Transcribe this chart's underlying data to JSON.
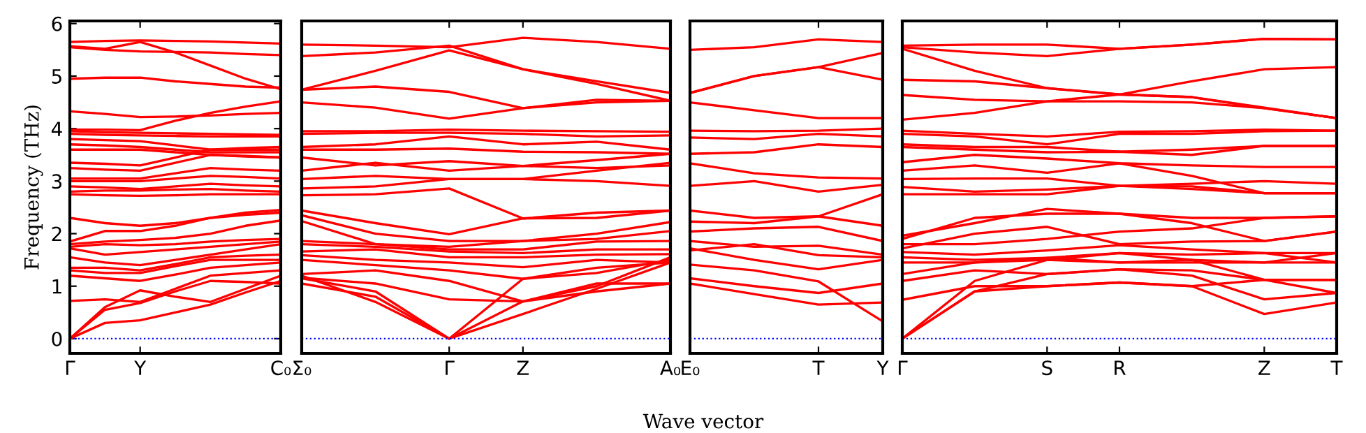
{
  "chart_data": [
    {
      "type": "line",
      "ylabel": "Frequency (THz)",
      "categories": [
        "Γ",
        null,
        "Y",
        null,
        null,
        null,
        "C₀"
      ],
      "ylim": [
        -0.28,
        6.05
      ],
      "yticks": [
        0,
        1,
        2,
        3,
        4,
        5,
        6
      ],
      "grid": false,
      "ref_lines": [
        {
          "axis": "y",
          "value": 0,
          "color": "#0000ff",
          "line_style": "dotted"
        }
      ],
      "series": [
        {
          "color": "#ff0000",
          "values": [
            5.65,
            5.67,
            5.68,
            5.67,
            5.66,
            5.64,
            5.62
          ]
        },
        {
          "color": "#ff0000",
          "values": [
            5.57,
            5.52,
            5.65,
            5.45,
            5.2,
            4.95,
            4.75
          ]
        },
        {
          "color": "#ff0000",
          "values": [
            5.55,
            5.5,
            5.47,
            5.46,
            5.45,
            5.42,
            5.4
          ]
        },
        {
          "color": "#ff0000",
          "values": [
            4.95,
            4.97,
            4.97,
            4.9,
            4.85,
            4.8,
            4.78
          ]
        },
        {
          "color": "#ff0000",
          "values": [
            4.33,
            4.28,
            4.22,
            4.23,
            4.25,
            4.28,
            4.3
          ]
        },
        {
          "color": "#ff0000",
          "values": [
            3.98,
            3.98,
            3.97,
            4.15,
            4.3,
            4.42,
            4.52
          ]
        },
        {
          "color": "#ff0000",
          "values": [
            3.95,
            3.93,
            3.92,
            3.91,
            3.9,
            3.89,
            3.88
          ]
        },
        {
          "color": "#ff0000",
          "values": [
            3.9,
            3.88,
            3.87,
            3.86,
            3.85,
            3.85,
            3.85
          ]
        },
        {
          "color": "#ff0000",
          "values": [
            3.8,
            3.78,
            3.76,
            3.68,
            3.6,
            3.6,
            3.6
          ]
        },
        {
          "color": "#ff0000",
          "values": [
            3.7,
            3.68,
            3.65,
            3.6,
            3.55,
            3.55,
            3.55
          ]
        },
        {
          "color": "#ff0000",
          "values": [
            3.6,
            3.6,
            3.6,
            3.55,
            3.5,
            3.47,
            3.45
          ]
        },
        {
          "color": "#ff0000",
          "values": [
            3.35,
            3.33,
            3.3,
            3.45,
            3.6,
            3.63,
            3.65
          ]
        },
        {
          "color": "#ff0000",
          "values": [
            3.25,
            3.22,
            3.2,
            3.35,
            3.5,
            3.48,
            3.45
          ]
        },
        {
          "color": "#ff0000",
          "values": [
            3.05,
            3.05,
            3.05,
            3.15,
            3.25,
            3.22,
            3.2
          ]
        },
        {
          "color": "#ff0000",
          "values": [
            3.0,
            3.0,
            3.0,
            3.05,
            3.1,
            3.08,
            3.05
          ]
        },
        {
          "color": "#ff0000",
          "values": [
            2.9,
            2.88,
            2.85,
            2.9,
            2.95,
            2.92,
            2.9
          ]
        },
        {
          "color": "#ff0000",
          "values": [
            2.8,
            2.82,
            2.82,
            2.84,
            2.85,
            2.82,
            2.8
          ]
        },
        {
          "color": "#ff0000",
          "values": [
            2.75,
            2.73,
            2.72,
            2.73,
            2.75,
            2.75,
            2.75
          ]
        },
        {
          "color": "#ff0000",
          "values": [
            2.3,
            2.2,
            2.15,
            2.2,
            2.3,
            2.4,
            2.45
          ]
        },
        {
          "color": "#ff0000",
          "values": [
            1.85,
            2.05,
            2.05,
            2.15,
            2.3,
            2.36,
            2.4
          ]
        },
        {
          "color": "#ff0000",
          "values": [
            1.8,
            1.85,
            1.88,
            1.92,
            2.0,
            2.15,
            2.25
          ]
        },
        {
          "color": "#ff0000",
          "values": [
            1.75,
            1.8,
            1.78,
            1.8,
            1.85,
            1.88,
            1.9
          ]
        },
        {
          "color": "#ff0000",
          "values": [
            1.72,
            1.6,
            1.65,
            1.7,
            1.75,
            1.8,
            1.85
          ]
        },
        {
          "color": "#ff0000",
          "values": [
            1.55,
            1.45,
            1.4,
            1.5,
            1.6,
            1.7,
            1.8
          ]
        },
        {
          "color": "#ff0000",
          "values": [
            1.35,
            1.35,
            1.3,
            1.42,
            1.55,
            1.58,
            1.6
          ]
        },
        {
          "color": "#ff0000",
          "values": [
            1.3,
            1.25,
            1.25,
            1.38,
            1.5,
            1.5,
            1.5
          ]
        },
        {
          "color": "#ff0000",
          "values": [
            1.2,
            1.15,
            1.1,
            1.22,
            1.35,
            1.4,
            1.45
          ]
        },
        {
          "color": "#ff0000",
          "values": [
            0.72,
            0.75,
            0.7,
            0.95,
            1.2,
            1.25,
            1.3
          ]
        },
        {
          "color": "#ff0000",
          "values": [
            0,
            0.6,
            0.92,
            0.8,
            0.7,
            0.95,
            1.2
          ]
        },
        {
          "color": "#ff0000",
          "values": [
            0,
            0.55,
            0.68,
            0.9,
            1.1,
            1.08,
            1.05
          ]
        },
        {
          "color": "#ff0000",
          "values": [
            0,
            0.3,
            0.35,
            0.5,
            0.65,
            0.88,
            1.1
          ]
        }
      ]
    },
    {
      "type": "line",
      "xlabel": "Wave vector",
      "tick_labels": "x",
      "categories": [
        "Σ₀",
        null,
        "Γ",
        "Z",
        null,
        "A₀"
      ],
      "ylim": [
        -0.28,
        6.05
      ],
      "grid": false,
      "ref_lines": [
        {
          "axis": "y",
          "value": 0,
          "color": "#0000ff",
          "line_style": "dotted"
        }
      ],
      "series": [
        {
          "color": "#ff0000",
          "values": [
            5.6,
            5.58,
            5.55,
            5.73,
            5.65,
            5.52
          ]
        },
        {
          "color": "#ff0000",
          "values": [
            5.38,
            5.45,
            5.58,
            5.13,
            4.9,
            4.68
          ]
        },
        {
          "color": "#ff0000",
          "values": [
            4.74,
            5.1,
            5.49,
            5.13,
            4.85,
            4.53
          ]
        },
        {
          "color": "#ff0000",
          "values": [
            4.74,
            4.8,
            4.7,
            4.39,
            4.5,
            4.53
          ]
        },
        {
          "color": "#ff0000",
          "values": [
            4.5,
            4.4,
            4.19,
            4.39,
            4.55,
            4.53
          ]
        },
        {
          "color": "#ff0000",
          "values": [
            3.95,
            3.95,
            3.98,
            3.96,
            3.95,
            3.94
          ]
        },
        {
          "color": "#ff0000",
          "values": [
            3.9,
            3.92,
            3.92,
            3.9,
            3.85,
            3.87
          ]
        },
        {
          "color": "#ff0000",
          "values": [
            3.65,
            3.7,
            3.85,
            3.7,
            3.75,
            3.6
          ]
        },
        {
          "color": "#ff0000",
          "values": [
            3.6,
            3.6,
            3.62,
            3.56,
            3.55,
            3.52
          ]
        },
        {
          "color": "#ff0000",
          "values": [
            3.45,
            3.3,
            3.38,
            3.29,
            3.4,
            3.52
          ]
        },
        {
          "color": "#ff0000",
          "values": [
            3.2,
            3.35,
            3.2,
            3.29,
            3.25,
            3.3
          ]
        },
        {
          "color": "#ff0000",
          "values": [
            3.04,
            3.1,
            3.04,
            3.04,
            3.2,
            3.35
          ]
        },
        {
          "color": "#ff0000",
          "values": [
            2.86,
            2.9,
            3.04,
            3.04,
            3.0,
            2.91
          ]
        },
        {
          "color": "#ff0000",
          "values": [
            2.73,
            2.75,
            2.86,
            2.29,
            2.4,
            2.44
          ]
        },
        {
          "color": "#ff0000",
          "values": [
            2.44,
            2.2,
            1.99,
            2.29,
            2.3,
            2.44
          ]
        },
        {
          "color": "#ff0000",
          "values": [
            2.35,
            2.0,
            1.86,
            1.86,
            2.0,
            2.22
          ]
        },
        {
          "color": "#ff0000",
          "values": [
            2.24,
            1.8,
            1.75,
            1.86,
            1.9,
            2.05
          ]
        },
        {
          "color": "#ff0000",
          "values": [
            1.86,
            1.8,
            1.7,
            1.7,
            1.85,
            1.86
          ]
        },
        {
          "color": "#ff0000",
          "values": [
            1.8,
            1.75,
            1.66,
            1.63,
            1.7,
            1.7
          ]
        },
        {
          "color": "#ff0000",
          "values": [
            1.66,
            1.7,
            1.55,
            1.55,
            1.6,
            1.61
          ]
        },
        {
          "color": "#ff0000",
          "values": [
            1.59,
            1.5,
            1.45,
            1.36,
            1.5,
            1.45
          ]
        },
        {
          "color": "#ff0000",
          "values": [
            1.5,
            1.4,
            1.3,
            1.14,
            1.35,
            1.45
          ]
        },
        {
          "color": "#ff0000",
          "values": [
            1.23,
            1.3,
            1.1,
            0.71,
            1.05,
            1.05
          ]
        },
        {
          "color": "#ff0000",
          "values": [
            1.16,
            1.05,
            0.75,
            0.71,
            0.9,
            1.05
          ]
        },
        {
          "color": "#ff0000",
          "values": [
            1.05,
            0.8,
            0,
            0.47,
            0.95,
            1.45
          ]
        },
        {
          "color": "#ff0000",
          "values": [
            1.2,
            0.7,
            0,
            0.71,
            1.0,
            1.55
          ]
        },
        {
          "color": "#ff0000",
          "values": [
            1.15,
            0.9,
            0,
            1.14,
            1.25,
            1.5
          ]
        }
      ]
    },
    {
      "type": "line",
      "tick_labels": "x",
      "categories": [
        "E₀",
        null,
        "T",
        "Y"
      ],
      "ylim": [
        -0.28,
        6.05
      ],
      "grid": false,
      "ref_lines": [
        {
          "axis": "y",
          "value": 0,
          "color": "#0000ff",
          "line_style": "dotted"
        }
      ],
      "series": [
        {
          "color": "#ff0000",
          "values": [
            5.5,
            5.55,
            5.7,
            5.65
          ]
        },
        {
          "color": "#ff0000",
          "values": [
            4.68,
            5.0,
            5.17,
            5.44
          ]
        },
        {
          "color": "#ff0000",
          "values": [
            4.68,
            5.0,
            5.17,
            4.93
          ]
        },
        {
          "color": "#ff0000",
          "values": [
            4.5,
            4.35,
            4.2,
            4.2
          ]
        },
        {
          "color": "#ff0000",
          "values": [
            3.96,
            3.95,
            3.96,
            4.0
          ]
        },
        {
          "color": "#ff0000",
          "values": [
            3.83,
            3.8,
            3.9,
            3.85
          ]
        },
        {
          "color": "#ff0000",
          "values": [
            3.52,
            3.55,
            3.7,
            3.65
          ]
        },
        {
          "color": "#ff0000",
          "values": [
            3.34,
            3.15,
            3.07,
            3.05
          ]
        },
        {
          "color": "#ff0000",
          "values": [
            2.91,
            3.0,
            2.8,
            2.93
          ]
        },
        {
          "color": "#ff0000",
          "values": [
            2.44,
            2.3,
            2.33,
            2.75
          ]
        },
        {
          "color": "#ff0000",
          "values": [
            2.23,
            2.2,
            2.33,
            2.15
          ]
        },
        {
          "color": "#ff0000",
          "values": [
            2.04,
            2.1,
            2.13,
            1.86
          ]
        },
        {
          "color": "#ff0000",
          "values": [
            1.86,
            1.75,
            1.77,
            1.6
          ]
        },
        {
          "color": "#ff0000",
          "values": [
            1.68,
            1.8,
            1.59,
            1.55
          ]
        },
        {
          "color": "#ff0000",
          "values": [
            1.72,
            1.5,
            1.32,
            1.5
          ]
        },
        {
          "color": "#ff0000",
          "values": [
            1.41,
            1.3,
            1.09,
            0.33
          ]
        },
        {
          "color": "#ff0000",
          "values": [
            1.15,
            1.0,
            0.87,
            1.05
          ]
        },
        {
          "color": "#ff0000",
          "values": [
            1.05,
            0.85,
            0.65,
            0.69
          ]
        }
      ]
    },
    {
      "type": "line",
      "tick_labels": "x",
      "categories": [
        "Γ",
        null,
        "S",
        "R",
        null,
        "Z",
        "T"
      ],
      "ylim": [
        -0.28,
        6.05
      ],
      "grid": false,
      "ref_lines": [
        {
          "axis": "y",
          "value": 0,
          "color": "#0000ff",
          "line_style": "dotted"
        }
      ],
      "series": [
        {
          "color": "#ff0000",
          "values": [
            5.58,
            5.6,
            5.6,
            5.52,
            5.6,
            5.71,
            5.7
          ]
        },
        {
          "color": "#ff0000",
          "values": [
            5.55,
            5.45,
            5.38,
            5.52,
            5.6,
            5.71,
            5.7
          ]
        },
        {
          "color": "#ff0000",
          "values": [
            5.52,
            5.1,
            4.77,
            4.65,
            4.9,
            5.13,
            5.17
          ]
        },
        {
          "color": "#ff0000",
          "values": [
            4.93,
            4.9,
            4.77,
            4.65,
            4.6,
            4.4,
            4.2
          ]
        },
        {
          "color": "#ff0000",
          "values": [
            4.64,
            4.55,
            4.52,
            4.65,
            4.6,
            4.39,
            4.2
          ]
        },
        {
          "color": "#ff0000",
          "values": [
            4.17,
            4.3,
            4.52,
            4.52,
            4.5,
            4.39,
            4.2
          ]
        },
        {
          "color": "#ff0000",
          "values": [
            3.96,
            3.9,
            3.85,
            3.94,
            3.95,
            3.98,
            3.96
          ]
        },
        {
          "color": "#ff0000",
          "values": [
            3.9,
            3.85,
            3.7,
            3.9,
            3.9,
            3.95,
            3.96
          ]
        },
        {
          "color": "#ff0000",
          "values": [
            3.7,
            3.65,
            3.65,
            3.56,
            3.6,
            3.67,
            3.67
          ]
        },
        {
          "color": "#ff0000",
          "values": [
            3.65,
            3.6,
            3.55,
            3.56,
            3.5,
            3.67,
            3.67
          ]
        },
        {
          "color": "#ff0000",
          "values": [
            3.36,
            3.5,
            3.43,
            3.34,
            3.3,
            3.27,
            3.27
          ]
        },
        {
          "color": "#ff0000",
          "values": [
            3.2,
            3.3,
            3.16,
            3.34,
            3.1,
            2.77,
            2.77
          ]
        },
        {
          "color": "#ff0000",
          "values": [
            3.04,
            3.05,
            3.05,
            2.91,
            2.9,
            2.77,
            2.77
          ]
        },
        {
          "color": "#ff0000",
          "values": [
            2.89,
            2.8,
            2.84,
            2.91,
            2.85,
            2.77,
            2.77
          ]
        },
        {
          "color": "#ff0000",
          "values": [
            2.75,
            2.75,
            2.75,
            2.91,
            2.95,
            3.0,
            2.95
          ]
        },
        {
          "color": "#ff0000",
          "values": [
            1.96,
            2.2,
            2.47,
            2.38,
            2.2,
            1.86,
            2.04
          ]
        },
        {
          "color": "#ff0000",
          "values": [
            1.9,
            2.3,
            2.38,
            2.38,
            2.3,
            2.3,
            2.33
          ]
        },
        {
          "color": "#ff0000",
          "values": [
            1.72,
            2.0,
            2.13,
            1.8,
            1.85,
            1.86,
            2.04
          ]
        },
        {
          "color": "#ff0000",
          "values": [
            1.8,
            1.8,
            1.9,
            2.04,
            2.1,
            2.3,
            2.33
          ]
        },
        {
          "color": "#ff0000",
          "values": [
            1.65,
            1.6,
            1.68,
            1.78,
            1.7,
            1.63,
            1.63
          ]
        },
        {
          "color": "#ff0000",
          "values": [
            1.55,
            1.5,
            1.54,
            1.63,
            1.6,
            1.63,
            1.45
          ]
        },
        {
          "color": "#ff0000",
          "values": [
            1.45,
            1.45,
            1.5,
            1.45,
            1.5,
            1.45,
            1.45
          ]
        },
        {
          "color": "#ff0000",
          "values": [
            1.23,
            1.45,
            1.54,
            1.45,
            1.45,
            1.45,
            1.63
          ]
        },
        {
          "color": "#ff0000",
          "values": [
            1.1,
            1.3,
            1.23,
            1.32,
            1.3,
            1.12,
            1.12
          ]
        },
        {
          "color": "#ff0000",
          "values": [
            0.74,
            1.0,
            1.0,
            1.07,
            1.0,
            0.47,
            0.69
          ]
        },
        {
          "color": "#ff0000",
          "values": [
            0,
            0.9,
            1.23,
            1.32,
            1.2,
            0.75,
            0.87
          ]
        },
        {
          "color": "#ff0000",
          "values": [
            0,
            0.9,
            1.0,
            1.07,
            1.0,
            1.12,
            1.12
          ]
        },
        {
          "color": "#ff0000",
          "values": [
            0,
            1.1,
            1.5,
            1.63,
            1.5,
            1.12,
            0.87
          ]
        }
      ]
    }
  ]
}
